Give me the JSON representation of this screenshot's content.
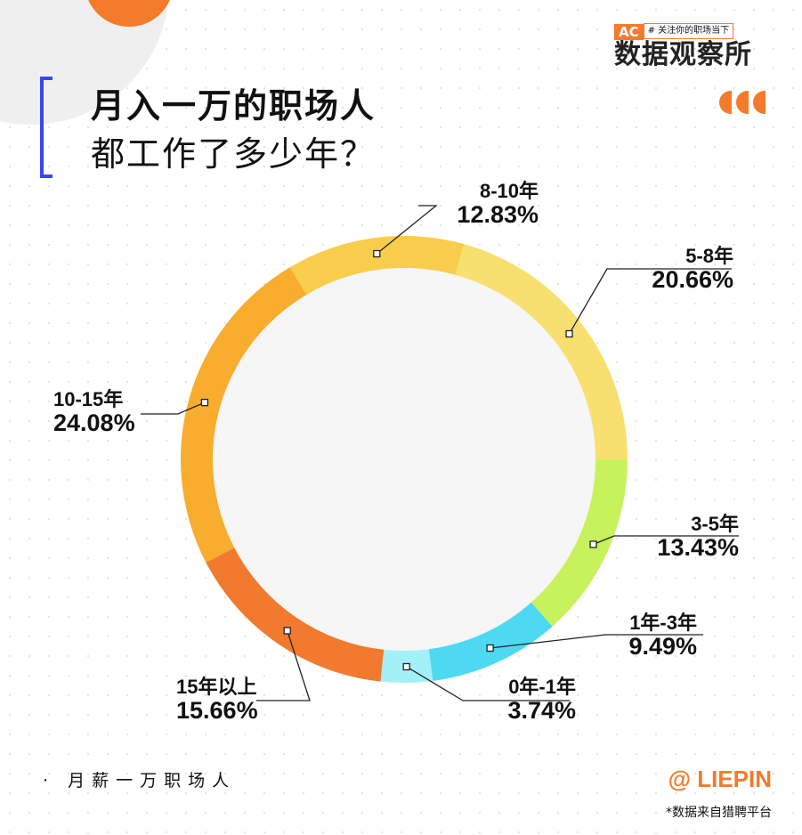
{
  "header": {
    "title_line1": "月入一万的职场人",
    "title_line2": "都工作了多少年？"
  },
  "logo": {
    "ac": "AC",
    "tagline": "# 关注你的职场当下",
    "name": "数据观察所"
  },
  "footer": {
    "subject": "· 月薪一万职场人",
    "brand": "@ LIEPIN",
    "source": "*数据来自猎聘平台"
  },
  "chart_data": {
    "type": "pie",
    "variant": "donut",
    "start": "3-o'clock",
    "direction": "clockwise",
    "categories": [
      "3-5年",
      "1年-3年",
      "0年-1年",
      "15年以上",
      "10-15年",
      "8-10年",
      "5-8年"
    ],
    "values": [
      13.43,
      9.49,
      3.74,
      15.66,
      24.08,
      12.83,
      20.66
    ],
    "labels": [
      "13.43%",
      "9.49%",
      "3.74%",
      "15.66%",
      "24.08%",
      "12.83%",
      "20.66%"
    ],
    "colors": [
      "#c8f25c",
      "#4ed9f2",
      "#a4f0f8",
      "#f27a2e",
      "#f8ad2e",
      "#f8cd4c",
      "#f8e070"
    ]
  }
}
